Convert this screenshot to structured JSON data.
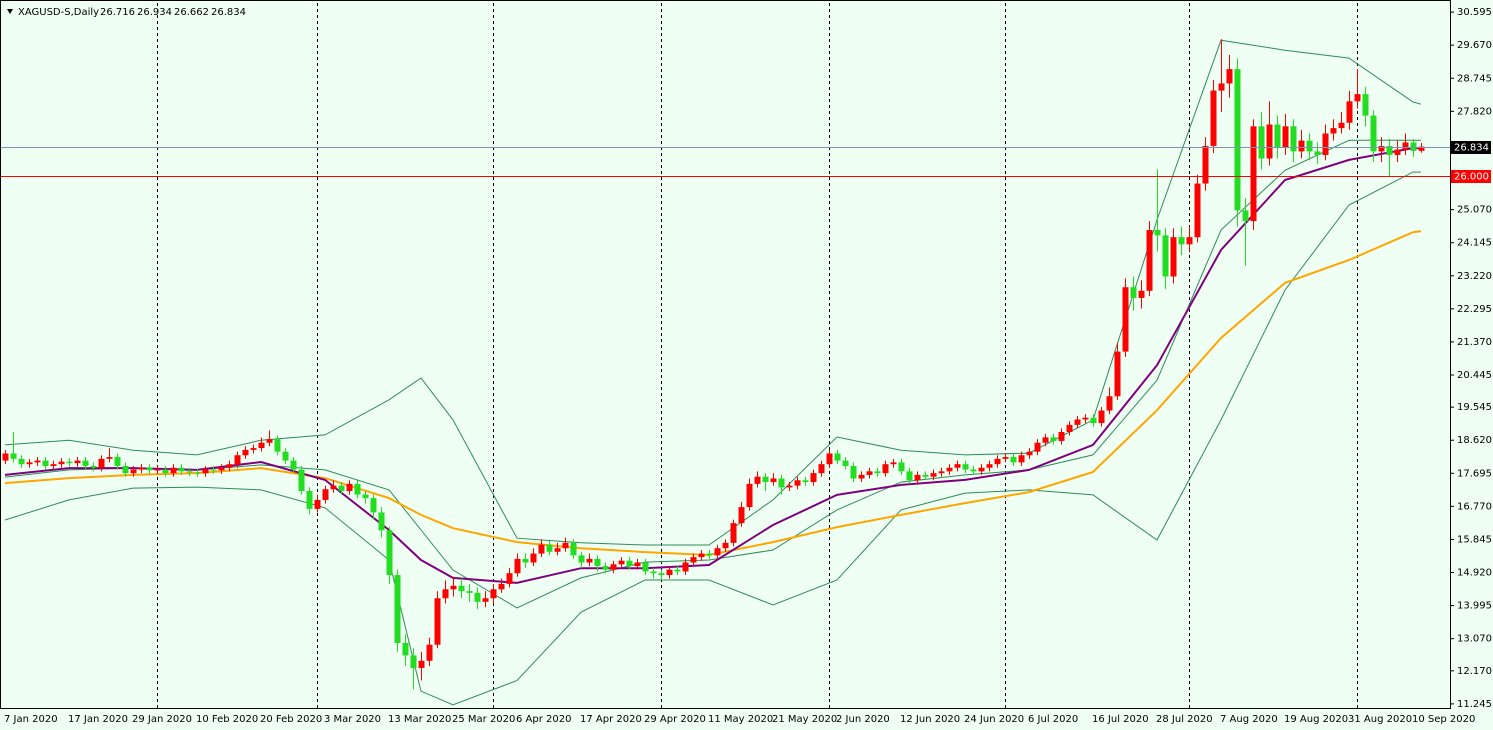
{
  "chart_data": {
    "type": "candlestick",
    "title": "XAGUSD-S,Daily",
    "up_color": "#ff0000",
    "down_color": "#22dd22",
    "bid_line_color": "#7b96b2",
    "bid_box_color": "#000000",
    "ylim": [
      11.13,
      30.85
    ],
    "yticks": [
      30.595,
      {
        "value": 29.67,
        "label": "29.670"
      },
      28.745,
      {
        "value": 27.82,
        "label": "27.820"
      },
      {
        "value": 25.07,
        "label": "25.070"
      },
      24.145,
      {
        "value": 23.22,
        "label": "23.220"
      },
      22.295,
      {
        "value": 21.37,
        "label": "21.370"
      },
      20.445,
      19.545,
      {
        "value": 18.62,
        "label": "18.620"
      },
      17.695,
      {
        "value": 16.77,
        "label": "16.770"
      },
      15.845,
      {
        "value": 14.92,
        "label": "14.920"
      },
      13.995,
      {
        "value": 13.07,
        "label": "13.070"
      },
      {
        "value": 12.17,
        "label": "12.170"
      },
      11.245
    ],
    "levels": [
      {
        "value": 26,
        "label": "26.000",
        "color": "#ff0000"
      }
    ],
    "categories": [
      "7 Jan 2020",
      null,
      null,
      null,
      null,
      null,
      null,
      null,
      "17 Jan 2020",
      null,
      null,
      null,
      null,
      null,
      null,
      null,
      "29 Jan 2020",
      null,
      null,
      null,
      null,
      null,
      null,
      null,
      "10 Feb 2020",
      null,
      null,
      null,
      null,
      null,
      null,
      null,
      "20 Feb 2020",
      null,
      null,
      null,
      null,
      null,
      null,
      null,
      "3 Mar 2020",
      null,
      null,
      null,
      null,
      null,
      null,
      null,
      "13 Mar 2020",
      null,
      null,
      null,
      null,
      null,
      null,
      null,
      "25 Mar 2020",
      null,
      null,
      null,
      null,
      null,
      null,
      null,
      "6 Apr 2020",
      null,
      null,
      null,
      null,
      null,
      null,
      null,
      "17 Apr 2020",
      null,
      null,
      null,
      null,
      null,
      null,
      null,
      "29 Apr 2020",
      null,
      null,
      null,
      null,
      null,
      null,
      null,
      "11 May 2020",
      null,
      null,
      null,
      null,
      null,
      null,
      null,
      "21 May 2020",
      null,
      null,
      null,
      null,
      null,
      null,
      null,
      "2 Jun 2020",
      null,
      null,
      null,
      null,
      null,
      null,
      null,
      "12 Jun 2020",
      null,
      null,
      null,
      null,
      null,
      null,
      null,
      "24 Jun 2020",
      null,
      null,
      null,
      null,
      null,
      null,
      null,
      "6 Jul 2020",
      null,
      null,
      null,
      null,
      null,
      null,
      null,
      "16 Jul 2020",
      null,
      null,
      null,
      null,
      null,
      null,
      null,
      "28 Jul 2020",
      null,
      null,
      null,
      null,
      null,
      null,
      null,
      "7 Aug 2020",
      null,
      null,
      null,
      null,
      null,
      null,
      null,
      "19 Aug 2020",
      null,
      null,
      null,
      null,
      null,
      null,
      null,
      "31 Aug 2020",
      null,
      null,
      null,
      null,
      null,
      null,
      null,
      "10 Sep 2020",
      null
    ],
    "open": [
      18.05,
      18.25,
      18.1,
      17.95,
      18.0,
      18.05,
      17.9,
      17.95,
      18.02,
      17.98,
      18.05,
      17.9,
      17.85,
      18.1,
      18.15,
      17.9,
      17.7,
      17.8,
      17.85,
      17.78,
      17.8,
      17.7,
      17.85,
      17.75,
      17.72,
      17.7,
      17.8,
      17.78,
      17.85,
      17.95,
      18.2,
      18.35,
      18.4,
      18.55,
      18.65,
      18.3,
      18.05,
      17.8,
      17.2,
      16.7,
      16.95,
      17.25,
      17.35,
      17.2,
      17.4,
      17.1,
      17.0,
      16.6,
      16.1,
      14.85,
      12.95,
      12.6,
      12.25,
      12.45,
      12.9,
      14.2,
      14.45,
      14.55,
      14.4,
      14.35,
      14.1,
      14.2,
      14.45,
      14.6,
      14.9,
      15.3,
      15.2,
      15.45,
      15.7,
      15.5,
      15.6,
      15.75,
      15.4,
      15.2,
      15.3,
      15.1,
      15.0,
      15.15,
      15.25,
      15.1,
      15.2,
      14.95,
      14.9,
      14.85,
      15.0,
      14.95,
      15.2,
      15.35,
      15.45,
      15.4,
      15.6,
      15.75,
      16.3,
      16.75,
      17.4,
      17.6,
      17.45,
      17.55,
      17.3,
      17.35,
      17.5,
      17.45,
      17.7,
      17.95,
      18.25,
      18.05,
      17.9,
      17.55,
      17.65,
      17.75,
      17.7,
      17.95,
      18.0,
      17.75,
      17.5,
      17.65,
      17.6,
      17.7,
      17.75,
      17.85,
      17.95,
      17.8,
      17.75,
      17.85,
      17.95,
      18.1,
      18.15,
      18.0,
      18.2,
      18.3,
      18.55,
      18.7,
      18.6,
      18.85,
      19.05,
      19.2,
      19.25,
      19.1,
      19.45,
      19.85,
      21.1,
      22.9,
      22.6,
      22.8,
      24.5,
      24.35,
      23.2,
      24.3,
      24.1,
      24.3,
      25.8,
      26.85,
      28.4,
      28.6,
      29.0,
      25.05,
      24.75,
      27.4,
      26.5,
      27.45,
      26.8,
      27.4,
      26.7,
      27.0,
      26.7,
      26.6,
      27.2,
      27.35,
      27.5,
      28.1,
      28.3,
      27.7,
      26.7,
      26.85,
      26.6,
      26.75,
      26.95,
      26.716
    ],
    "high": [
      18.35,
      18.85,
      18.2,
      18.1,
      18.15,
      18.15,
      18.05,
      18.12,
      18.12,
      18.15,
      18.15,
      18.0,
      18.2,
      18.4,
      18.25,
      18.0,
      17.9,
      17.95,
      17.95,
      17.9,
      17.9,
      17.95,
      17.95,
      17.85,
      17.82,
      17.9,
      17.9,
      17.95,
      18.05,
      18.3,
      18.45,
      18.5,
      18.7,
      18.9,
      18.75,
      18.4,
      18.15,
      17.9,
      17.3,
      17.1,
      17.35,
      17.5,
      17.45,
      17.5,
      17.5,
      17.2,
      17.1,
      16.75,
      16.2,
      15.0,
      13.2,
      12.8,
      12.7,
      13.1,
      14.4,
      14.7,
      14.8,
      14.75,
      14.6,
      14.5,
      14.4,
      14.6,
      14.75,
      15.05,
      15.45,
      15.45,
      15.6,
      15.85,
      15.8,
      15.75,
      15.9,
      15.85,
      15.5,
      15.45,
      15.4,
      15.2,
      15.25,
      15.35,
      15.35,
      15.3,
      15.3,
      15.05,
      15.0,
      15.1,
      15.1,
      15.3,
      15.45,
      15.55,
      15.55,
      15.7,
      15.85,
      16.4,
      16.9,
      17.55,
      17.75,
      17.7,
      17.7,
      17.65,
      17.45,
      17.6,
      17.6,
      17.8,
      18.05,
      18.35,
      18.35,
      18.15,
      18.0,
      17.75,
      17.85,
      17.85,
      18.05,
      18.1,
      18.1,
      17.85,
      17.75,
      17.75,
      17.8,
      17.85,
      17.95,
      18.05,
      18.05,
      17.9,
      17.95,
      18.05,
      18.2,
      18.25,
      18.25,
      18.3,
      18.4,
      18.65,
      18.8,
      18.8,
      18.95,
      19.15,
      19.3,
      19.35,
      19.35,
      19.55,
      20.1,
      21.35,
      23.15,
      23.2,
      23.1,
      24.75,
      26.2,
      24.55,
      24.55,
      24.6,
      24.6,
      26.05,
      27.1,
      28.7,
      29.84,
      29.4,
      29.3,
      25.4,
      27.6,
      27.8,
      28.1,
      27.7,
      27.75,
      27.6,
      27.3,
      27.2,
      26.95,
      27.45,
      27.6,
      27.8,
      28.4,
      29.0,
      28.5,
      27.85,
      27.1,
      27.05,
      27.0,
      27.2,
      27.05,
      26.934
    ],
    "low": [
      17.95,
      18.0,
      17.85,
      17.85,
      17.9,
      17.8,
      17.8,
      17.85,
      17.88,
      17.88,
      17.8,
      17.75,
      17.75,
      18.0,
      17.8,
      17.6,
      17.6,
      17.7,
      17.68,
      17.68,
      17.6,
      17.6,
      17.65,
      17.62,
      17.6,
      17.6,
      17.68,
      17.68,
      17.75,
      17.85,
      18.1,
      18.25,
      18.3,
      18.45,
      18.2,
      17.95,
      17.7,
      17.1,
      16.55,
      16.6,
      16.85,
      17.15,
      17.1,
      17.1,
      17.0,
      16.85,
      16.4,
      15.9,
      14.6,
      12.7,
      12.3,
      11.64,
      11.9,
      12.3,
      12.8,
      14.05,
      14.25,
      14.2,
      14.1,
      13.9,
      13.95,
      14.05,
      14.35,
      14.5,
      14.8,
      15.05,
      15.1,
      15.35,
      15.4,
      15.4,
      15.5,
      15.3,
      15.05,
      15.1,
      14.95,
      14.9,
      14.9,
      15.05,
      15.0,
      15.0,
      14.85,
      14.75,
      14.7,
      14.75,
      14.85,
      14.85,
      15.1,
      15.25,
      15.3,
      15.3,
      15.5,
      15.65,
      16.2,
      16.65,
      17.3,
      17.2,
      17.35,
      17.1,
      17.2,
      17.25,
      17.35,
      17.35,
      17.6,
      17.85,
      17.95,
      17.8,
      17.45,
      17.45,
      17.55,
      17.6,
      17.6,
      17.85,
      17.65,
      17.4,
      17.4,
      17.5,
      17.5,
      17.6,
      17.65,
      17.75,
      17.7,
      17.65,
      17.65,
      17.75,
      17.85,
      18.0,
      17.9,
      17.9,
      18.1,
      18.2,
      18.45,
      18.5,
      18.5,
      18.75,
      18.95,
      19.1,
      19.0,
      19.0,
      19.35,
      19.75,
      20.95,
      22.25,
      22.3,
      22.65,
      23.9,
      22.85,
      23.0,
      23.8,
      23.9,
      24.15,
      25.6,
      26.65,
      27.8,
      28.2,
      24.6,
      23.5,
      24.5,
      26.2,
      26.3,
      26.5,
      26.6,
      26.4,
      26.5,
      26.45,
      26.35,
      26.45,
      27.0,
      27.2,
      27.3,
      27.9,
      27.4,
      26.4,
      26.4,
      26.0,
      26.4,
      26.6,
      26.55,
      26.662
    ],
    "close": [
      18.25,
      18.1,
      17.95,
      18.0,
      18.05,
      17.9,
      17.95,
      18.02,
      17.98,
      18.05,
      17.9,
      17.85,
      18.1,
      18.15,
      17.9,
      17.7,
      17.8,
      17.85,
      17.78,
      17.8,
      17.7,
      17.85,
      17.75,
      17.72,
      17.7,
      17.8,
      17.78,
      17.85,
      17.95,
      18.2,
      18.35,
      18.4,
      18.55,
      18.65,
      18.3,
      18.05,
      17.8,
      17.2,
      16.7,
      16.95,
      17.25,
      17.35,
      17.2,
      17.4,
      17.1,
      17.0,
      16.6,
      16.1,
      14.85,
      12.95,
      12.6,
      12.25,
      12.45,
      12.9,
      14.2,
      14.45,
      14.55,
      14.4,
      14.35,
      14.1,
      14.2,
      14.45,
      14.6,
      14.9,
      15.3,
      15.2,
      15.45,
      15.7,
      15.5,
      15.6,
      15.75,
      15.4,
      15.2,
      15.3,
      15.1,
      15.0,
      15.15,
      15.25,
      15.1,
      15.2,
      14.95,
      14.9,
      14.85,
      15.0,
      14.95,
      15.2,
      15.35,
      15.45,
      15.4,
      15.6,
      15.75,
      16.3,
      16.75,
      17.4,
      17.6,
      17.45,
      17.55,
      17.3,
      17.35,
      17.5,
      17.45,
      17.7,
      17.95,
      18.25,
      18.05,
      17.9,
      17.55,
      17.65,
      17.75,
      17.7,
      17.95,
      18.0,
      17.75,
      17.5,
      17.65,
      17.6,
      17.7,
      17.75,
      17.85,
      17.95,
      17.8,
      17.75,
      17.85,
      17.95,
      18.1,
      18.15,
      18.0,
      18.2,
      18.3,
      18.55,
      18.7,
      18.6,
      18.85,
      19.05,
      19.2,
      19.25,
      19.1,
      19.45,
      19.85,
      21.1,
      22.9,
      22.6,
      22.8,
      24.5,
      24.35,
      23.2,
      24.3,
      24.1,
      24.3,
      25.8,
      26.85,
      28.4,
      28.6,
      29.0,
      25.05,
      24.75,
      27.4,
      26.5,
      27.45,
      26.8,
      27.4,
      26.7,
      27.0,
      26.7,
      26.6,
      27.2,
      27.35,
      27.5,
      28.1,
      28.3,
      27.7,
      26.7,
      26.85,
      26.6,
      26.75,
      26.95,
      26.716,
      26.834
    ],
    "lines": [
      {
        "color": "#2e8b57",
        "x": [
          0,
          8,
          16,
          24,
          32,
          40,
          48,
          52,
          56,
          64,
          72,
          80,
          88,
          96,
          104,
          112,
          120,
          128,
          136,
          144,
          152,
          160,
          168,
          176,
          177
        ],
        "values": [
          18.49,
          18.62,
          18.34,
          18.21,
          18.62,
          18.77,
          19.75,
          20.36,
          19.19,
          15.88,
          15.75,
          15.69,
          15.69,
          16.95,
          18.71,
          18.34,
          18.21,
          18.26,
          19.19,
          24.78,
          29.81,
          29.53,
          29.31,
          28.08,
          28.02
        ]
      },
      {
        "color": "#2e8b57",
        "x": [
          0,
          8,
          16,
          24,
          32,
          40,
          48,
          52,
          56,
          64,
          72,
          80,
          88,
          96,
          104,
          112,
          120,
          128,
          136,
          144,
          152,
          160,
          168,
          176,
          177
        ],
        "values": [
          17.59,
          17.79,
          17.84,
          17.79,
          17.93,
          17.79,
          17.23,
          16.11,
          14.99,
          13.93,
          14.77,
          15.21,
          15.27,
          15.55,
          16.67,
          17.45,
          17.65,
          17.79,
          18.21,
          20.3,
          24.5,
          26.17,
          27.01,
          27.01,
          27.01
        ]
      },
      {
        "color": "#2e8b57",
        "x": [
          0,
          8,
          16,
          24,
          32,
          40,
          48,
          52,
          56,
          64,
          72,
          80,
          88,
          96,
          104,
          112,
          120,
          128,
          136,
          144,
          152,
          160,
          168,
          176,
          177
        ],
        "values": [
          16.39,
          16.95,
          17.28,
          17.31,
          17.23,
          16.73,
          15.27,
          11.6,
          11.22,
          11.9,
          13.81,
          14.71,
          14.71,
          14.01,
          14.71,
          16.67,
          17.14,
          17.23,
          17.09,
          15.83,
          19.19,
          22.82,
          25.2,
          26.12,
          26.12
        ]
      },
      {
        "color": "#ffa500",
        "x": [
          0,
          8,
          16,
          24,
          32,
          40,
          48,
          52,
          56,
          64,
          72,
          80,
          88,
          96,
          104,
          112,
          120,
          128,
          136,
          144,
          152,
          160,
          168,
          176,
          177
        ],
        "values": [
          17.42,
          17.56,
          17.65,
          17.7,
          17.84,
          17.56,
          17.0,
          16.53,
          16.16,
          15.77,
          15.6,
          15.49,
          15.41,
          15.77,
          16.19,
          16.53,
          16.86,
          17.17,
          17.73,
          19.46,
          21.48,
          23.02,
          23.66,
          24.44,
          24.47
        ]
      },
      {
        "color": "#800080",
        "x": [
          0,
          8,
          16,
          24,
          32,
          40,
          48,
          52,
          56,
          64,
          72,
          80,
          88,
          96,
          104,
          112,
          120,
          128,
          136,
          144,
          152,
          160,
          168,
          176,
          177
        ],
        "values": [
          17.65,
          17.84,
          17.84,
          17.79,
          18.01,
          17.51,
          16.11,
          15.27,
          14.77,
          14.63,
          15.04,
          15.04,
          15.13,
          16.25,
          17.09,
          17.37,
          17.51,
          17.79,
          18.49,
          20.72,
          23.94,
          25.9,
          26.46,
          26.79,
          26.79
        ]
      }
    ]
  }
}
